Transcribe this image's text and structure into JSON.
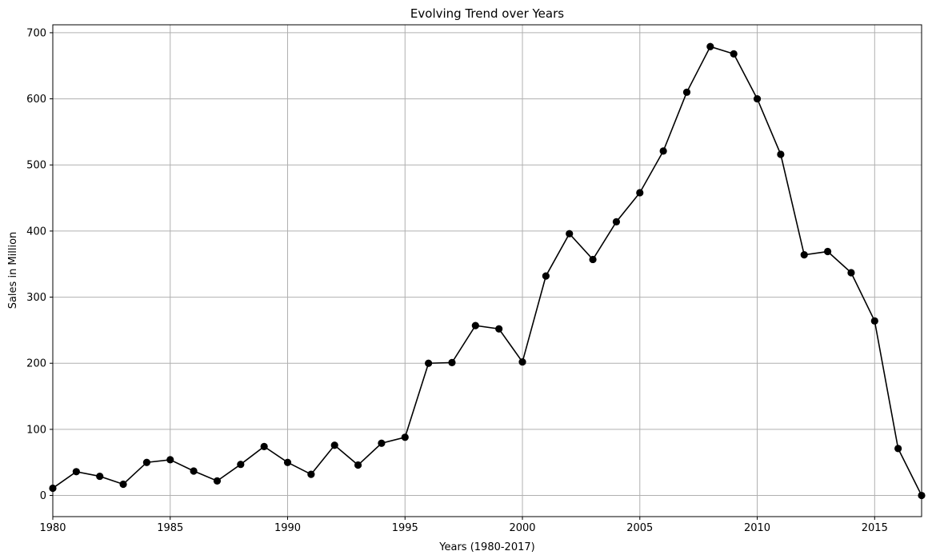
{
  "chart_data": {
    "type": "line",
    "title": "Evolving Trend over Years",
    "xlabel": "Years (1980-2017)",
    "ylabel": "Sales in Million",
    "xlim": [
      1980,
      2017
    ],
    "ylim": [
      -32,
      712
    ],
    "x_ticks": [
      1980,
      1985,
      1990,
      1995,
      2000,
      2005,
      2010,
      2015
    ],
    "y_ticks": [
      0,
      100,
      200,
      300,
      400,
      500,
      600,
      700
    ],
    "grid": true,
    "series_color": "#000000",
    "grid_color": "#b0b0b0",
    "marker": "circle",
    "x": [
      1980,
      1981,
      1982,
      1983,
      1984,
      1985,
      1986,
      1987,
      1988,
      1989,
      1990,
      1991,
      1992,
      1993,
      1994,
      1995,
      1996,
      1997,
      1998,
      1999,
      2000,
      2001,
      2002,
      2003,
      2004,
      2005,
      2006,
      2007,
      2008,
      2009,
      2010,
      2011,
      2012,
      2013,
      2014,
      2015,
      2016,
      2017
    ],
    "series": [
      {
        "values": [
          11,
          36,
          29,
          17,
          50,
          54,
          37,
          22,
          47,
          74,
          50,
          32,
          76,
          46,
          79,
          88,
          200,
          201,
          257,
          252,
          202,
          332,
          396,
          357,
          414,
          458,
          521,
          610,
          679,
          668,
          600,
          516,
          364,
          369,
          337,
          264,
          71,
          0
        ]
      }
    ]
  }
}
